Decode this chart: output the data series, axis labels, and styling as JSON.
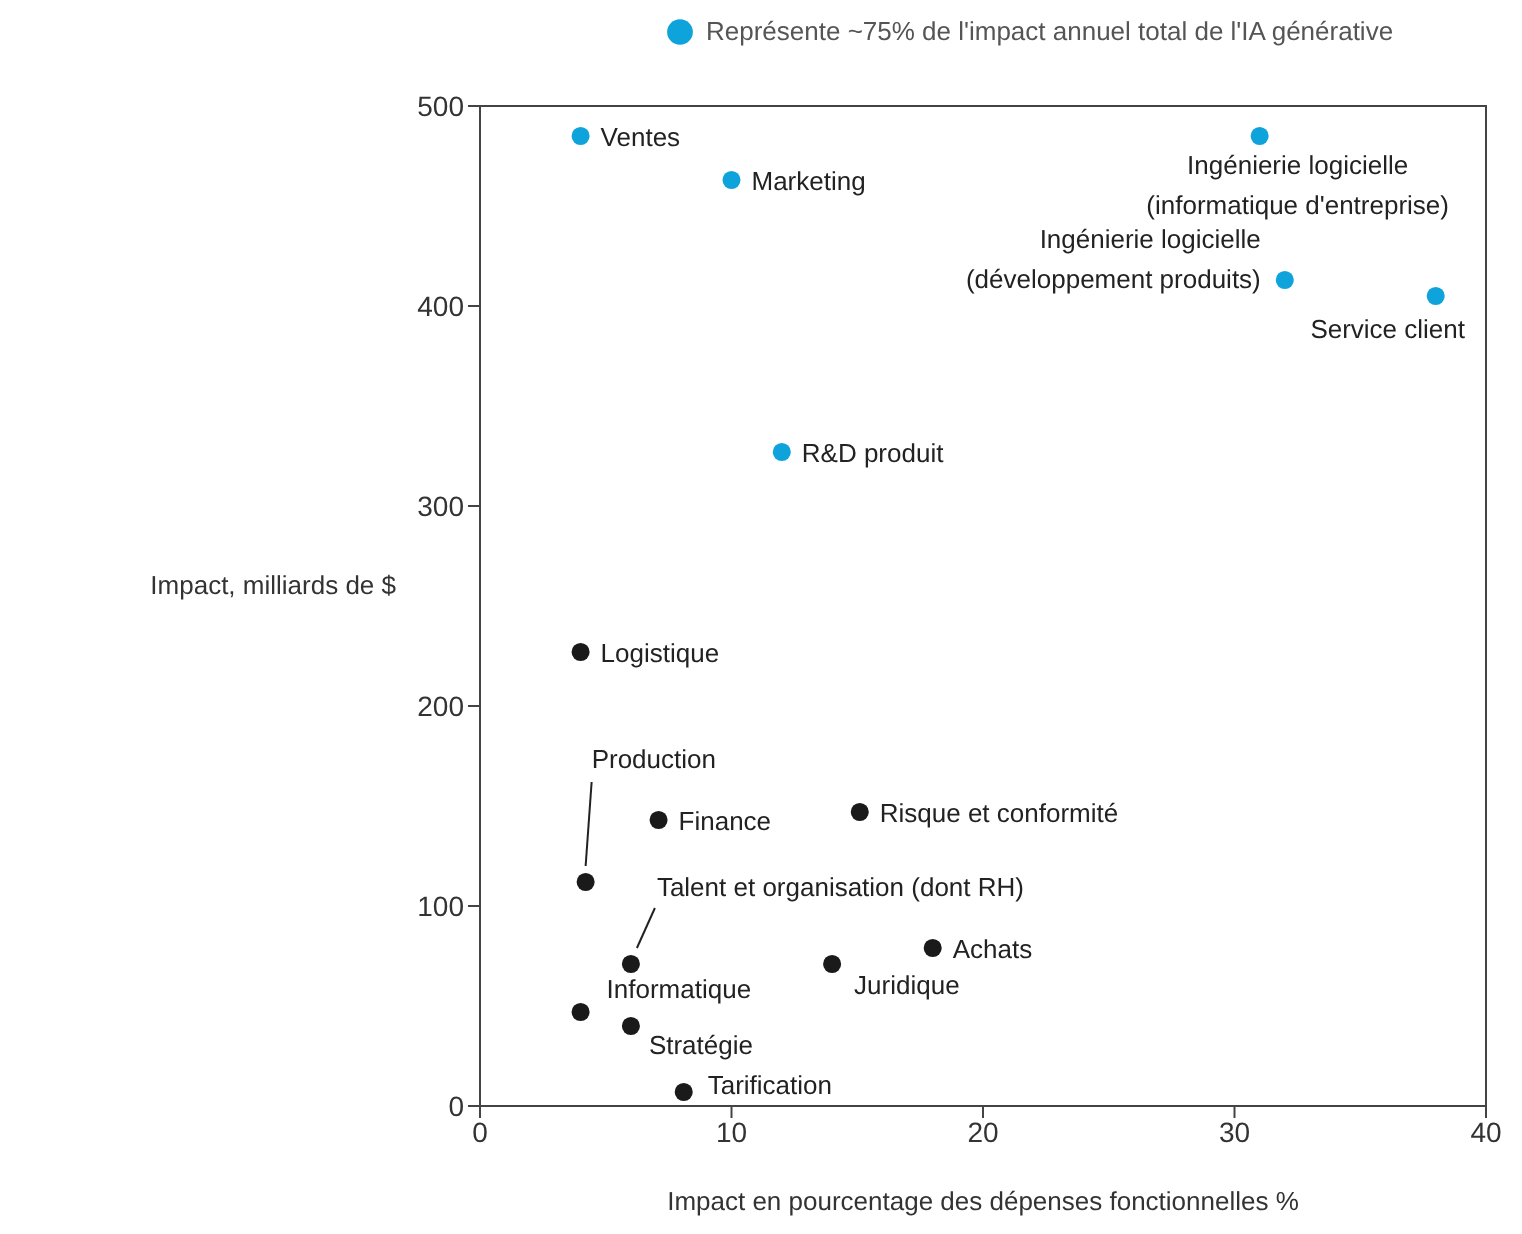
{
  "chart_data": {
    "type": "scatter",
    "xlabel": "Impact en pourcentage des dépenses fonctionnelles %",
    "ylabel": "Impact, milliards de $",
    "xlim": [
      0,
      40
    ],
    "xticks": [
      0,
      10,
      20,
      30,
      40
    ],
    "ylim": [
      0,
      500
    ],
    "yticks": [
      0,
      100,
      200,
      300,
      400,
      500
    ],
    "legend": "top",
    "marker": "circle",
    "series": [
      {
        "name": "Représente ~75% de l'impact annuel total de l'IA générative",
        "color": "#0fa3dc",
        "x": [
          4,
          10,
          31,
          32,
          38,
          12
        ],
        "values": [
          485,
          463,
          485,
          413,
          405,
          327
        ]
      },
      {
        "color": "#1a1a1a",
        "x": [
          4,
          4.2,
          7.1,
          15.1,
          6,
          18,
          14,
          4,
          6,
          8.1
        ],
        "values": [
          227,
          112,
          143,
          147,
          71,
          79,
          71,
          47,
          40,
          7
        ]
      }
    ],
    "annotations": [
      {
        "text": "Ventes",
        "x": 4,
        "y": 485
      },
      {
        "text": "Marketing",
        "x": 10,
        "y": 463
      },
      {
        "text": "Ingénierie logicielle\n(informatique d'entreprise)",
        "x": 31,
        "y": 485
      },
      {
        "text": "Ingénierie logicielle\n(développement produits)",
        "x": 32,
        "y": 413
      },
      {
        "text": "Service client",
        "x": 38,
        "y": 405
      },
      {
        "text": "R&D produit",
        "x": 12,
        "y": 327
      },
      {
        "text": "Logistique",
        "x": 4,
        "y": 227
      },
      {
        "text": "Production",
        "x": 4.2,
        "y": 112
      },
      {
        "text": "Finance",
        "x": 7.1,
        "y": 143
      },
      {
        "text": "Risque et conformité",
        "x": 15.1,
        "y": 147
      },
      {
        "text": "Talent et organisation (dont RH)",
        "x": 6,
        "y": 71
      },
      {
        "text": "Achats",
        "x": 18,
        "y": 79
      },
      {
        "text": "Juridique",
        "x": 14,
        "y": 71
      },
      {
        "text": "Informatique",
        "x": 4,
        "y": 47
      },
      {
        "text": "Stratégie",
        "x": 6,
        "y": 40
      },
      {
        "text": "Tarification",
        "x": 8.1,
        "y": 7
      }
    ]
  }
}
